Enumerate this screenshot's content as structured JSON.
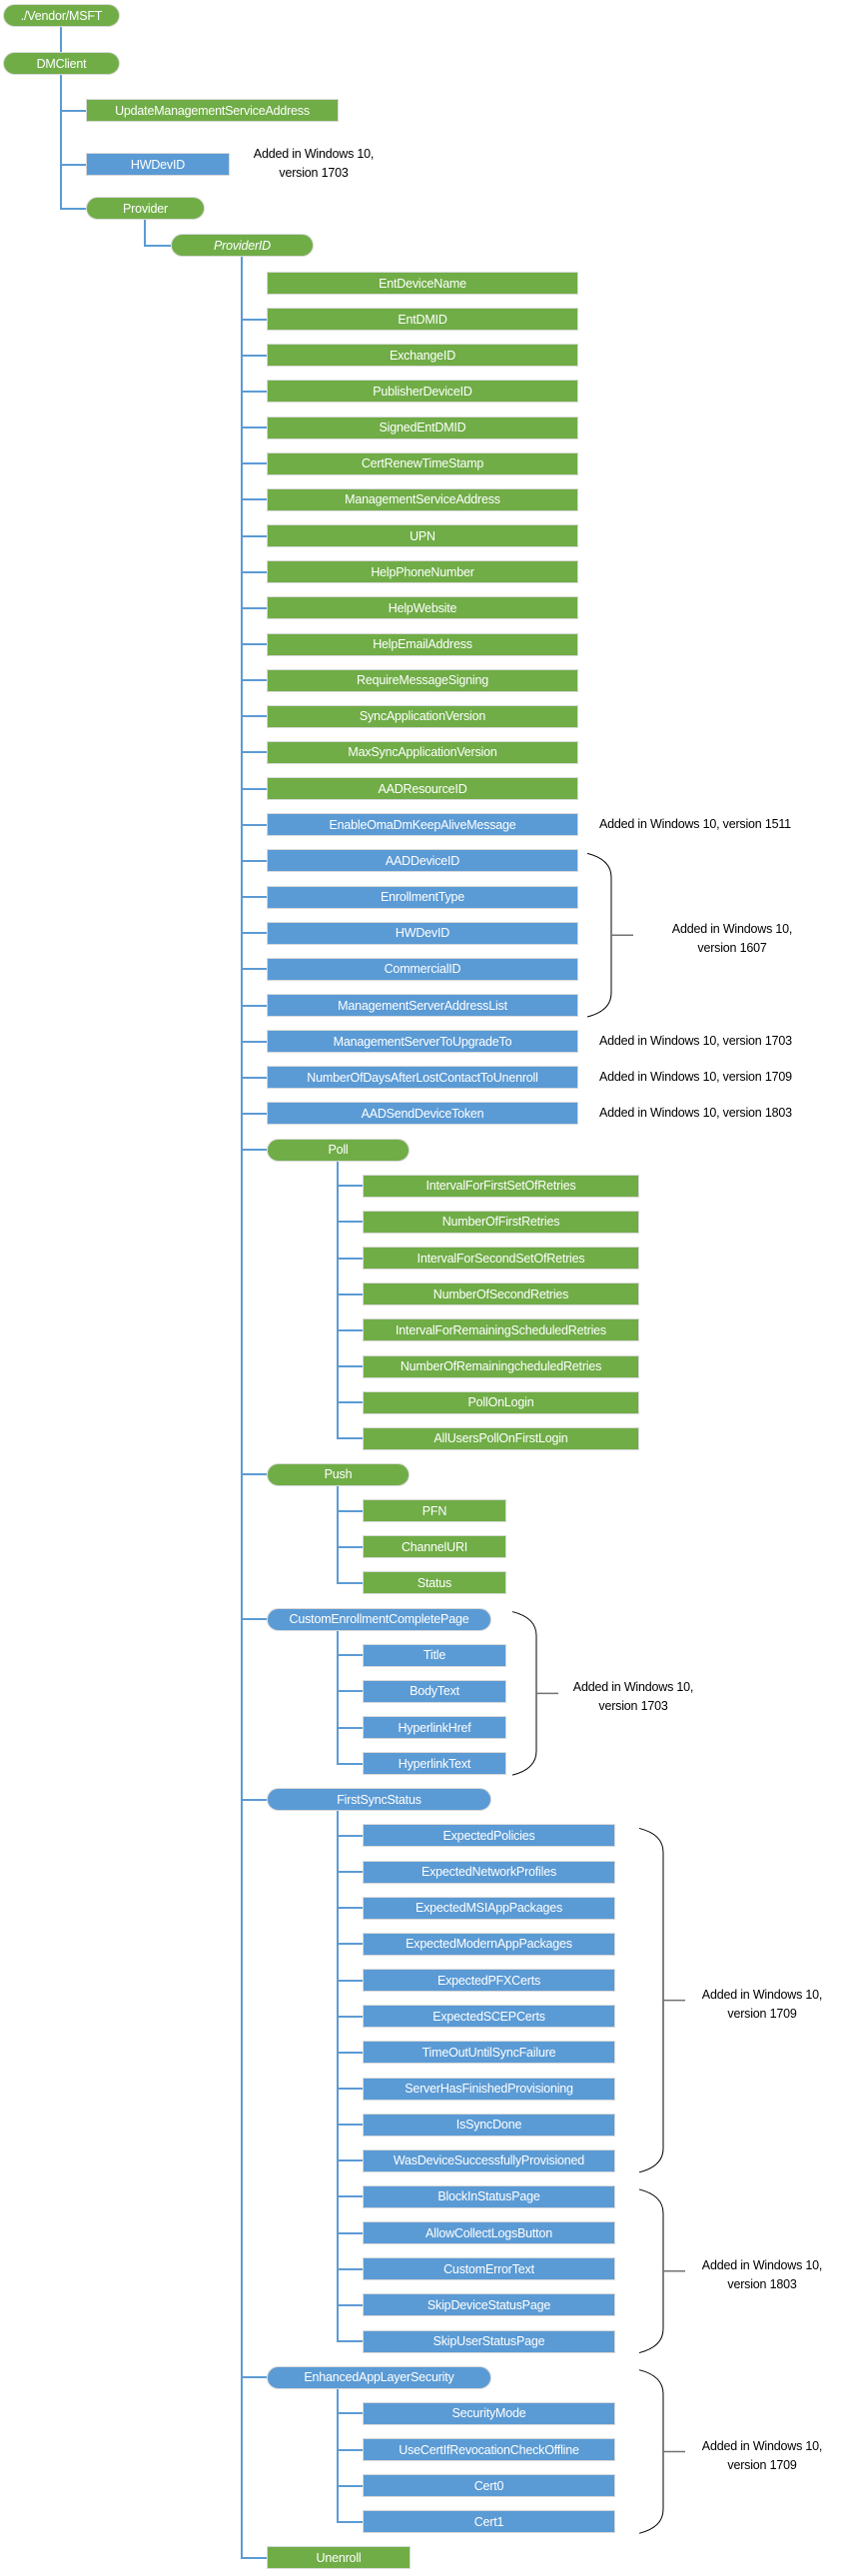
{
  "colors": {
    "green": "#70AD47",
    "blue": "#5B9BD5",
    "connector": "#5B9BD5",
    "brace": "#000000",
    "brace_tick": "#767171"
  },
  "diagram": {
    "root": {
      "label": "./Vendor/MSFT",
      "color": "green",
      "shape": "pill"
    },
    "dmclient": {
      "label": "DMClient",
      "color": "green",
      "shape": "pill"
    },
    "dmclient_children": [
      {
        "label": "UpdateManagementServiceAddress",
        "color": "green",
        "shape": "rect"
      },
      {
        "label": "HWDevID",
        "color": "blue",
        "shape": "rect",
        "note": [
          "Added in Windows 10,",
          "version 1703"
        ]
      },
      {
        "label": "Provider",
        "color": "green",
        "shape": "pill"
      }
    ],
    "provider_id": {
      "label": "ProviderID",
      "color": "green",
      "shape": "pill",
      "italic": true
    },
    "nodes": [
      {
        "label": "EntDeviceName",
        "color": "green",
        "shape": "rect"
      },
      {
        "label": "EntDMID",
        "color": "green",
        "shape": "rect"
      },
      {
        "label": "ExchangeID",
        "color": "green",
        "shape": "rect"
      },
      {
        "label": "PublisherDeviceID",
        "color": "green",
        "shape": "rect"
      },
      {
        "label": "SignedEntDMID",
        "color": "green",
        "shape": "rect"
      },
      {
        "label": "CertRenewTimeStamp",
        "color": "green",
        "shape": "rect"
      },
      {
        "label": "ManagementServiceAddress",
        "color": "green",
        "shape": "rect"
      },
      {
        "label": "UPN",
        "color": "green",
        "shape": "rect"
      },
      {
        "label": "HelpPhoneNumber",
        "color": "green",
        "shape": "rect"
      },
      {
        "label": "HelpWebsite",
        "color": "green",
        "shape": "rect"
      },
      {
        "label": "HelpEmailAddress",
        "color": "green",
        "shape": "rect"
      },
      {
        "label": "RequireMessageSigning",
        "color": "green",
        "shape": "rect"
      },
      {
        "label": "SyncApplicationVersion",
        "color": "green",
        "shape": "rect"
      },
      {
        "label": "MaxSyncApplicationVersion",
        "color": "green",
        "shape": "rect"
      },
      {
        "label": "AADResourceID",
        "color": "green",
        "shape": "rect"
      },
      {
        "label": "EnableOmaDmKeepAliveMessage",
        "color": "blue",
        "shape": "rect",
        "note": [
          "Added in Windows 10, version 1511"
        ]
      },
      {
        "label": "AADDeviceID",
        "color": "blue",
        "shape": "rect"
      },
      {
        "label": "EnrollmentType",
        "color": "blue",
        "shape": "rect"
      },
      {
        "label": "HWDevID",
        "color": "blue",
        "shape": "rect"
      },
      {
        "label": "CommercialID",
        "color": "blue",
        "shape": "rect"
      },
      {
        "label": "ManagementServerAddressList",
        "color": "blue",
        "shape": "rect"
      },
      {
        "label": "ManagementServerToUpgradeTo",
        "color": "blue",
        "shape": "rect",
        "note": [
          "Added in Windows 10, version 1703"
        ]
      },
      {
        "label": "NumberOfDaysAfterLostContactToUnenroll",
        "color": "blue",
        "shape": "rect",
        "note": [
          "Added in Windows 10, version 1709"
        ]
      },
      {
        "label": "AADSendDeviceToken",
        "color": "blue",
        "shape": "rect",
        "note": [
          "Added in Windows 10, version 1803"
        ]
      },
      {
        "label": "Poll",
        "color": "green",
        "shape": "pill",
        "children": [
          {
            "label": "IntervalForFirstSetOfRetries",
            "color": "green",
            "shape": "rect"
          },
          {
            "label": "NumberOfFirstRetries",
            "color": "green",
            "shape": "rect"
          },
          {
            "label": "IntervalForSecondSetOfRetries",
            "color": "green",
            "shape": "rect"
          },
          {
            "label": "NumberOfSecondRetries",
            "color": "green",
            "shape": "rect"
          },
          {
            "label": "IntervalForRemainingScheduledRetries",
            "color": "green",
            "shape": "rect"
          },
          {
            "label": "NumberOfRemainingcheduledRetries",
            "color": "green",
            "shape": "rect"
          },
          {
            "label": "PollOnLogin",
            "color": "green",
            "shape": "rect"
          },
          {
            "label": "AllUsersPollOnFirstLogin",
            "color": "green",
            "shape": "rect"
          }
        ]
      },
      {
        "label": "Push",
        "color": "green",
        "shape": "pill",
        "children": [
          {
            "label": "PFN",
            "color": "green",
            "shape": "rect"
          },
          {
            "label": "ChannelURI",
            "color": "green",
            "shape": "rect"
          },
          {
            "label": "Status",
            "color": "green",
            "shape": "rect"
          }
        ]
      },
      {
        "label": "CustomEnrollmentCompletePage",
        "color": "blue",
        "shape": "pill",
        "children": [
          {
            "label": "Title",
            "color": "blue",
            "shape": "rect"
          },
          {
            "label": "BodyText",
            "color": "blue",
            "shape": "rect"
          },
          {
            "label": "HyperlinkHref",
            "color": "blue",
            "shape": "rect"
          },
          {
            "label": "HyperlinkText",
            "color": "blue",
            "shape": "rect"
          }
        ]
      },
      {
        "label": "FirstSyncStatus",
        "color": "blue",
        "shape": "pill",
        "children": [
          {
            "label": "ExpectedPolicies",
            "color": "blue",
            "shape": "rect"
          },
          {
            "label": "ExpectedNetworkProfiles",
            "color": "blue",
            "shape": "rect"
          },
          {
            "label": "ExpectedMSIAppPackages",
            "color": "blue",
            "shape": "rect"
          },
          {
            "label": "ExpectedModernAppPackages",
            "color": "blue",
            "shape": "rect"
          },
          {
            "label": "ExpectedPFXCerts",
            "color": "blue",
            "shape": "rect"
          },
          {
            "label": "ExpectedSCEPCerts",
            "color": "blue",
            "shape": "rect"
          },
          {
            "label": "TimeOutUntilSyncFailure",
            "color": "blue",
            "shape": "rect"
          },
          {
            "label": "ServerHasFinishedProvisioning",
            "color": "blue",
            "shape": "rect"
          },
          {
            "label": "IsSyncDone",
            "color": "blue",
            "shape": "rect"
          },
          {
            "label": "WasDeviceSuccessfullyProvisioned",
            "color": "blue",
            "shape": "rect"
          },
          {
            "label": "BlockInStatusPage",
            "color": "blue",
            "shape": "rect"
          },
          {
            "label": "AllowCollectLogsButton",
            "color": "blue",
            "shape": "rect"
          },
          {
            "label": "CustomErrorText",
            "color": "blue",
            "shape": "rect"
          },
          {
            "label": "SkipDeviceStatusPage",
            "color": "blue",
            "shape": "rect"
          },
          {
            "label": "SkipUserStatusPage",
            "color": "blue",
            "shape": "rect"
          }
        ]
      },
      {
        "label": "EnhancedAppLayerSecurity",
        "color": "blue",
        "shape": "pill",
        "children": [
          {
            "label": "SecurityMode",
            "color": "blue",
            "shape": "rect"
          },
          {
            "label": "UseCertIfRevocationCheckOffline",
            "color": "blue",
            "shape": "rect"
          },
          {
            "label": "Cert0",
            "color": "blue",
            "shape": "rect"
          },
          {
            "label": "Cert1",
            "color": "blue",
            "shape": "rect"
          }
        ]
      },
      {
        "label": "Unenroll",
        "color": "green",
        "shape": "rect"
      }
    ],
    "brace_groups": [
      {
        "lines": [
          "Added in Windows 10,",
          "version 1607"
        ],
        "first": "AADDeviceID",
        "last": "ManagementServerAddressList"
      },
      {
        "lines": [
          "Added in Windows 10,",
          "version 1703"
        ],
        "first": "CustomEnrollmentCompletePage",
        "last": "HyperlinkText"
      },
      {
        "lines": [
          "Added in Windows 10,",
          "version 1709"
        ],
        "first": "ExpectedPolicies",
        "last": "WasDeviceSuccessfullyProvisioned"
      },
      {
        "lines": [
          "Added in Windows 10,",
          "version 1803"
        ],
        "first": "BlockInStatusPage",
        "last": "SkipUserStatusPage"
      },
      {
        "lines": [
          "Added in Windows 10,",
          "version 1709"
        ],
        "first": "EnhancedAppLayerSecurity",
        "last": "Cert1"
      }
    ]
  }
}
